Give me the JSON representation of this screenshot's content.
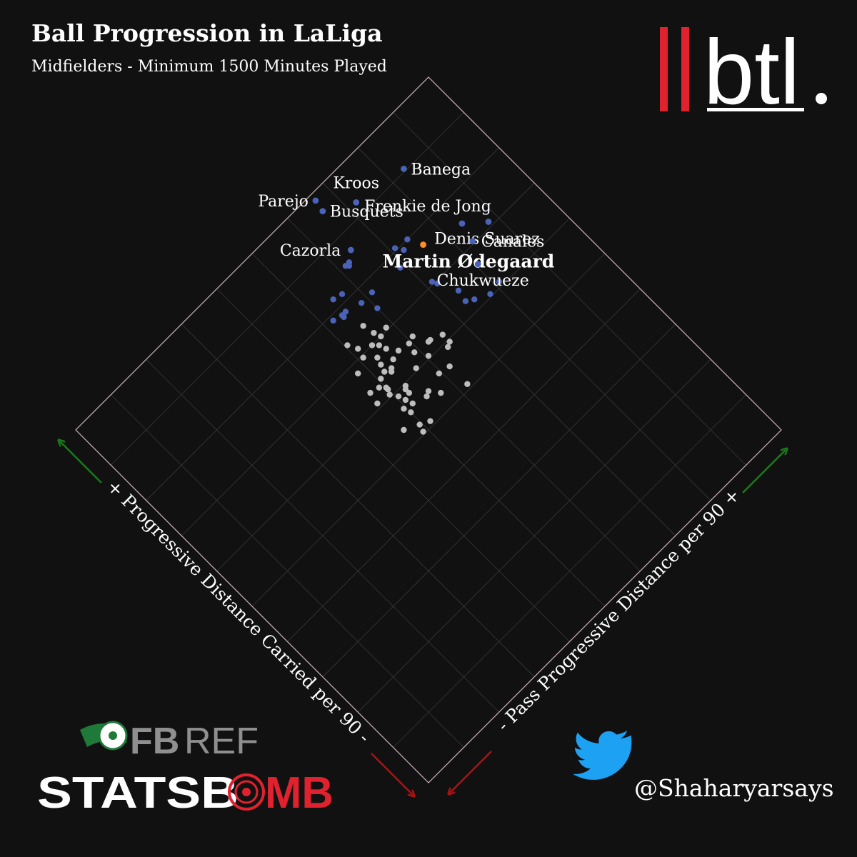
{
  "header": {
    "title": "Ball Progression in LaLiga",
    "subtitle": "Midfielders - Minimum 1500 Minutes Played"
  },
  "branding": {
    "btl_logo_text": "btl",
    "fbref_fb": "FB",
    "fbref_ref": "REF",
    "statsbomb_stats": "STATSB",
    "statsbomb_mb": "MB",
    "twitter_handle": "@Shaharyarsays"
  },
  "colors": {
    "background": "#121111",
    "grid": "#3a3838",
    "border": "#cbb6b6",
    "highlight_point": "#ff8c2a",
    "top_point": "#4a63b8",
    "other_point": "#bdbdbd",
    "arrow_up": "#1a7a1a",
    "arrow_down": "#aa1414",
    "brand_red": "#e0222f"
  },
  "chart_data": {
    "type": "scatter",
    "title": "Ball Progression in LaLiga",
    "subtitle": "Midfielders - Minimum 1500 Minutes Played",
    "rotated_45_degrees": true,
    "axis_left_label": "+ Progressive Distance Carried per 90 -",
    "axis_right_label": "- Pass Progressive Distance per 90 +",
    "grid": true,
    "labeled_points": [
      {
        "name": "Banega",
        "carry_rank": 0.81,
        "pass_rank": 0.67,
        "group": "top"
      },
      {
        "name": "Kroos",
        "carry_rank": 0.85,
        "pass_rank": 0.44,
        "group": "top"
      },
      {
        "name": "Parejo",
        "carry_rank": 0.97,
        "pass_rank": 0.33,
        "group": "top"
      },
      {
        "name": "Busquets",
        "carry_rank": 0.92,
        "pass_rank": 0.32,
        "group": "top"
      },
      {
        "name": "Frenkie de Jong",
        "carry_rank": 0.49,
        "pass_rank": 0.68,
        "group": "top"
      },
      {
        "name": "Denis Suarez",
        "carry_rank": 0.42,
        "pass_rank": 0.76,
        "group": "top"
      },
      {
        "name": "Canales",
        "carry_rank": 0.41,
        "pass_rank": 0.66,
        "group": "top"
      },
      {
        "name": "Martin Ødegaard",
        "carry_rank": 0.54,
        "pass_rank": 0.51,
        "group": "highlight"
      },
      {
        "name": "Cazorla",
        "carry_rank": 0.73,
        "pass_rank": 0.29,
        "group": "top"
      },
      {
        "name": "Chukwueze",
        "carry_rank": 0.33,
        "pass_rank": 0.61,
        "group": "top"
      }
    ],
    "unlabeled_top_points": [
      [
        0.6,
        0.48
      ],
      [
        0.61,
        0.42
      ],
      [
        0.58,
        0.44
      ],
      [
        0.54,
        0.38
      ],
      [
        0.69,
        0.24
      ],
      [
        0.7,
        0.25
      ],
      [
        0.7,
        0.23
      ],
      [
        0.41,
        0.43
      ],
      [
        0.39,
        0.44
      ],
      [
        0.31,
        0.48
      ],
      [
        0.21,
        0.56
      ],
      [
        0.26,
        0.47
      ],
      [
        0.24,
        0.5
      ],
      [
        0.22,
        0.62
      ],
      [
        0.63,
        0.14
      ],
      [
        0.55,
        0.17
      ],
      [
        0.64,
        0.1
      ],
      [
        0.57,
        0.1
      ],
      [
        0.55,
        0.23
      ],
      [
        0.49,
        0.2
      ],
      [
        0.57,
        0.08
      ],
      [
        0.56,
        0.08
      ],
      [
        0.58,
        0.04
      ]
    ],
    "other_points": [
      [
        0.41,
        0.17
      ],
      [
        0.43,
        0.12
      ],
      [
        0.4,
        0.13
      ],
      [
        0.38,
        0.1
      ],
      [
        0.4,
        0.08
      ],
      [
        0.3,
        0.19
      ],
      [
        0.31,
        0.22
      ],
      [
        0.26,
        0.18
      ],
      [
        0.25,
        0.25
      ],
      [
        0.47,
        0.01
      ],
      [
        0.43,
        0.03
      ],
      [
        0.39,
        0.02
      ],
      [
        0.35,
        0.06
      ],
      [
        0.31,
        0.14
      ],
      [
        0.3,
        0.1
      ],
      [
        0.32,
        0.05
      ],
      [
        0.29,
        0.04
      ],
      [
        0.27,
        0.06
      ],
      [
        0.28,
        0.07
      ],
      [
        0.21,
        0.21
      ],
      [
        0.21,
        0.14
      ],
      [
        0.18,
        0.29
      ],
      [
        0.23,
        0.31
      ],
      [
        0.25,
        0.26
      ],
      [
        0.19,
        0.31
      ],
      [
        0.48,
        0.11
      ],
      [
        0.35,
        0.11
      ],
      [
        0.24,
        0.0
      ],
      [
        0.28,
        0.01
      ],
      [
        0.19,
        0.06
      ],
      [
        0.26,
        -0.02
      ],
      [
        0.36,
        -0.04
      ],
      [
        0.27,
        -0.06
      ],
      [
        0.23,
        0.0
      ],
      [
        0.18,
        0.05
      ],
      [
        0.18,
        0.01
      ],
      [
        0.21,
        -0.01
      ],
      [
        0.22,
        -0.07
      ],
      [
        0.15,
        0.02
      ],
      [
        0.12,
        0.03
      ],
      [
        0.13,
        0.19
      ],
      [
        0.1,
        0.09
      ],
      [
        0.07,
        0.14
      ],
      [
        0.1,
        0.0
      ],
      [
        0.04,
        -0.01
      ],
      [
        0.07,
        -0.07
      ],
      [
        0.01,
        -0.02
      ],
      [
        0.02,
        0.03
      ],
      [
        0.13,
        -0.01
      ],
      [
        0.16,
        0.05
      ],
      [
        0.11,
        0.11
      ],
      [
        0.12,
        0.24
      ],
      [
        0.02,
        0.24
      ]
    ]
  }
}
